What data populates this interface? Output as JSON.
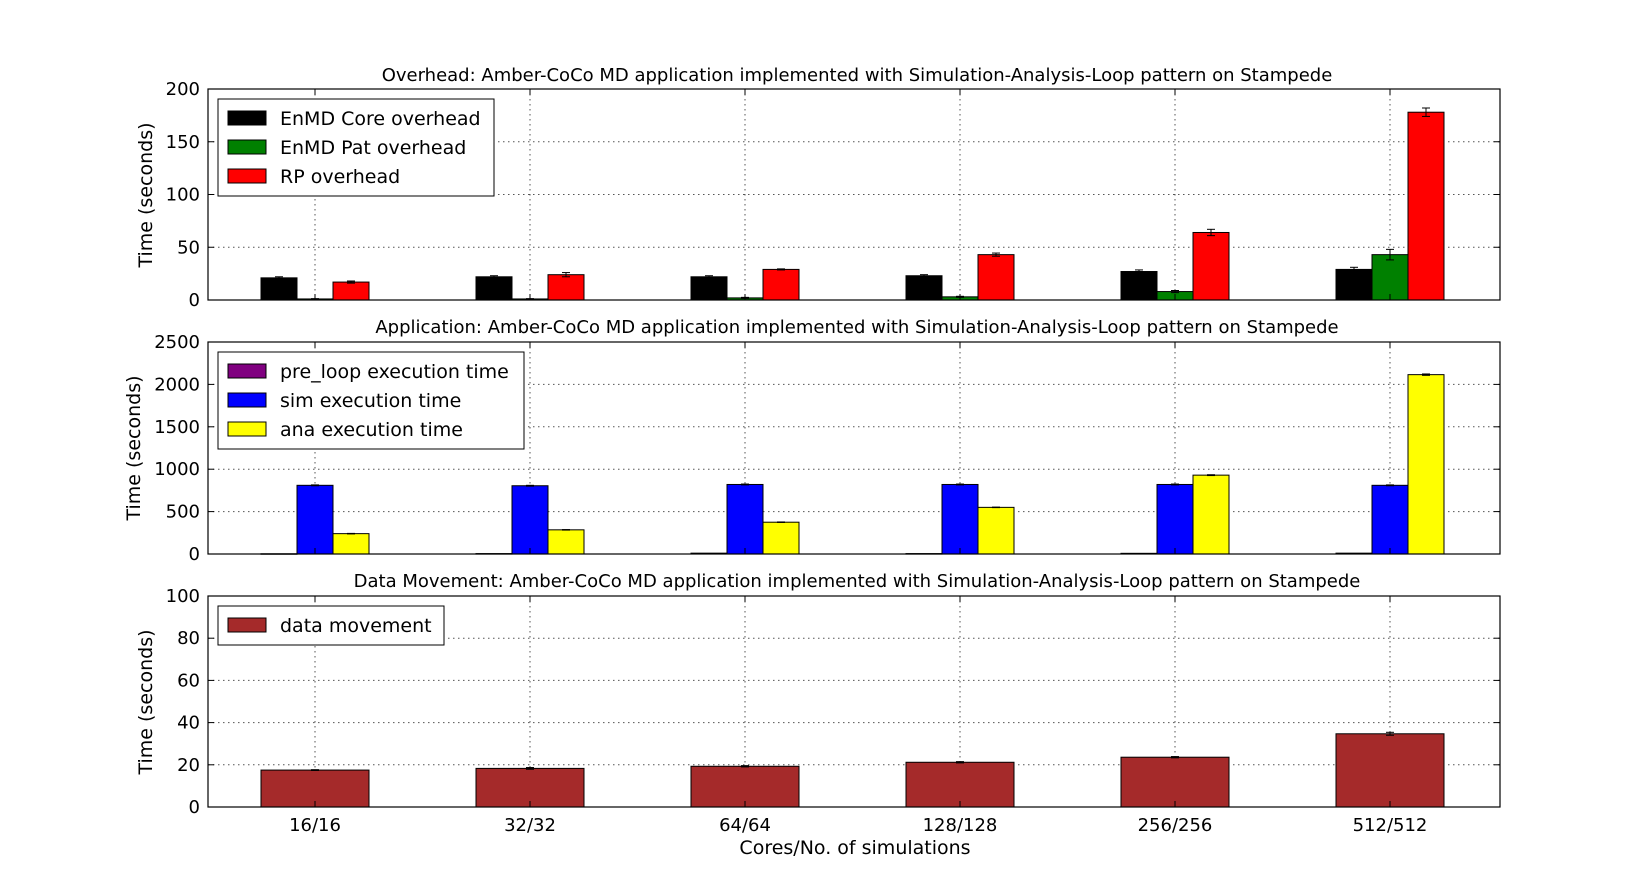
{
  "chart_data": [
    {
      "type": "bar",
      "title": "Overhead: Amber-CoCo MD application implemented with Simulation-Analysis-Loop pattern on Stampede",
      "ylabel": "Time (seconds)",
      "xlabel": "",
      "categories": [
        "16/16",
        "32/32",
        "64/64",
        "128/128",
        "256/256",
        "512/512"
      ],
      "ylim": [
        0,
        200
      ],
      "yticks": [
        0,
        50,
        100,
        150,
        200
      ],
      "grid": true,
      "legend_position": "top-left",
      "series": [
        {
          "name": "EnMD Core overhead",
          "color": "#000000",
          "values": [
            21,
            22,
            22,
            23,
            27,
            29
          ],
          "errors": [
            1,
            1,
            1,
            1,
            1.5,
            2
          ]
        },
        {
          "name": "EnMD Pat overhead",
          "color": "#008000",
          "values": [
            1,
            1,
            2,
            3,
            8,
            43
          ],
          "errors": [
            0.3,
            0.3,
            0.5,
            0.5,
            1,
            5
          ]
        },
        {
          "name": "RP overhead",
          "color": "#ff0000",
          "values": [
            17,
            24,
            29,
            43,
            64,
            178
          ],
          "errors": [
            1,
            2,
            0.5,
            1.5,
            3,
            4
          ]
        }
      ]
    },
    {
      "type": "bar",
      "title": "Application: Amber-CoCo MD application implemented with Simulation-Analysis-Loop pattern on Stampede",
      "ylabel": "Time (seconds)",
      "xlabel": "",
      "categories": [
        "16/16",
        "32/32",
        "64/64",
        "128/128",
        "256/256",
        "512/512"
      ],
      "ylim": [
        0,
        2500
      ],
      "yticks": [
        0,
        500,
        1000,
        1500,
        2000,
        2500
      ],
      "grid": true,
      "legend_position": "top-left",
      "series": [
        {
          "name": "pre_loop execution time",
          "color": "#800080",
          "values": [
            3,
            5,
            10,
            5,
            8,
            10
          ],
          "errors": [
            0,
            0,
            0,
            0,
            0,
            0
          ]
        },
        {
          "name": "sim execution time",
          "color": "#0000ff",
          "values": [
            810,
            805,
            820,
            820,
            820,
            810
          ],
          "errors": [
            5,
            5,
            5,
            5,
            5,
            5
          ]
        },
        {
          "name": "ana execution time",
          "color": "#ffff00",
          "values": [
            240,
            285,
            375,
            550,
            930,
            2115
          ],
          "errors": [
            3,
            3,
            3,
            3,
            5,
            8
          ]
        }
      ]
    },
    {
      "type": "bar",
      "title": "Data Movement: Amber-CoCo MD application implemented with Simulation-Analysis-Loop pattern on Stampede",
      "ylabel": "Time (seconds)",
      "xlabel": "Cores/No. of simulations",
      "categories": [
        "16/16",
        "32/32",
        "64/64",
        "128/128",
        "256/256",
        "512/512"
      ],
      "ylim": [
        0,
        100
      ],
      "yticks": [
        0,
        20,
        40,
        60,
        80,
        100
      ],
      "grid": true,
      "legend_position": "top-left",
      "series": [
        {
          "name": "data movement",
          "color": "#a52a2a",
          "values": [
            17.5,
            18.3,
            19.3,
            21.2,
            23.6,
            34.7
          ],
          "errors": [
            0.2,
            0.4,
            0.3,
            0.3,
            0.3,
            0.7
          ]
        }
      ]
    }
  ]
}
